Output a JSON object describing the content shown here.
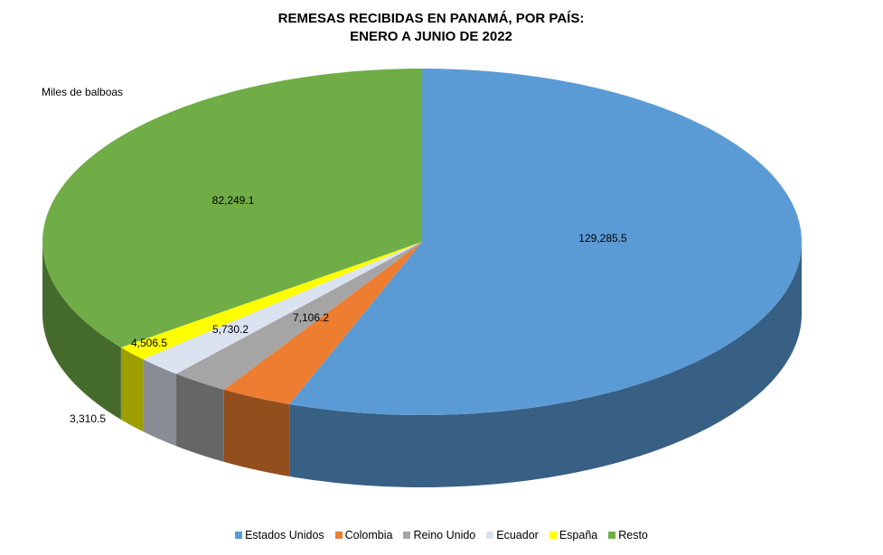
{
  "chart_data": {
    "type": "pie",
    "title_line1": "REMESAS RECIBIDAS EN PANAMÁ, POR PAÍS:",
    "title_line2": "ENERO A JUNIO DE 2022",
    "unit_label": "Miles de balboas",
    "slices": [
      {
        "name": "Estados Unidos",
        "value": 129285.5,
        "label": "129,285.5",
        "color": "#5B9BD5"
      },
      {
        "name": "Colombia",
        "value": 7106.2,
        "label": "7,106.2",
        "color": "#ED7D31"
      },
      {
        "name": "Reino Unido",
        "value": 5730.2,
        "label": "5,730.2",
        "color": "#A5A5A5"
      },
      {
        "name": "Ecuador",
        "value": 4506.5,
        "label": "4,506.5",
        "color": "#DCE3F0"
      },
      {
        "name": "España",
        "value": 3310.5,
        "label": "3,310.5",
        "color": "#FFFF00"
      },
      {
        "name": "Resto",
        "value": 82249.1,
        "label": "82,249.1",
        "color": "#70AD47"
      }
    ]
  }
}
